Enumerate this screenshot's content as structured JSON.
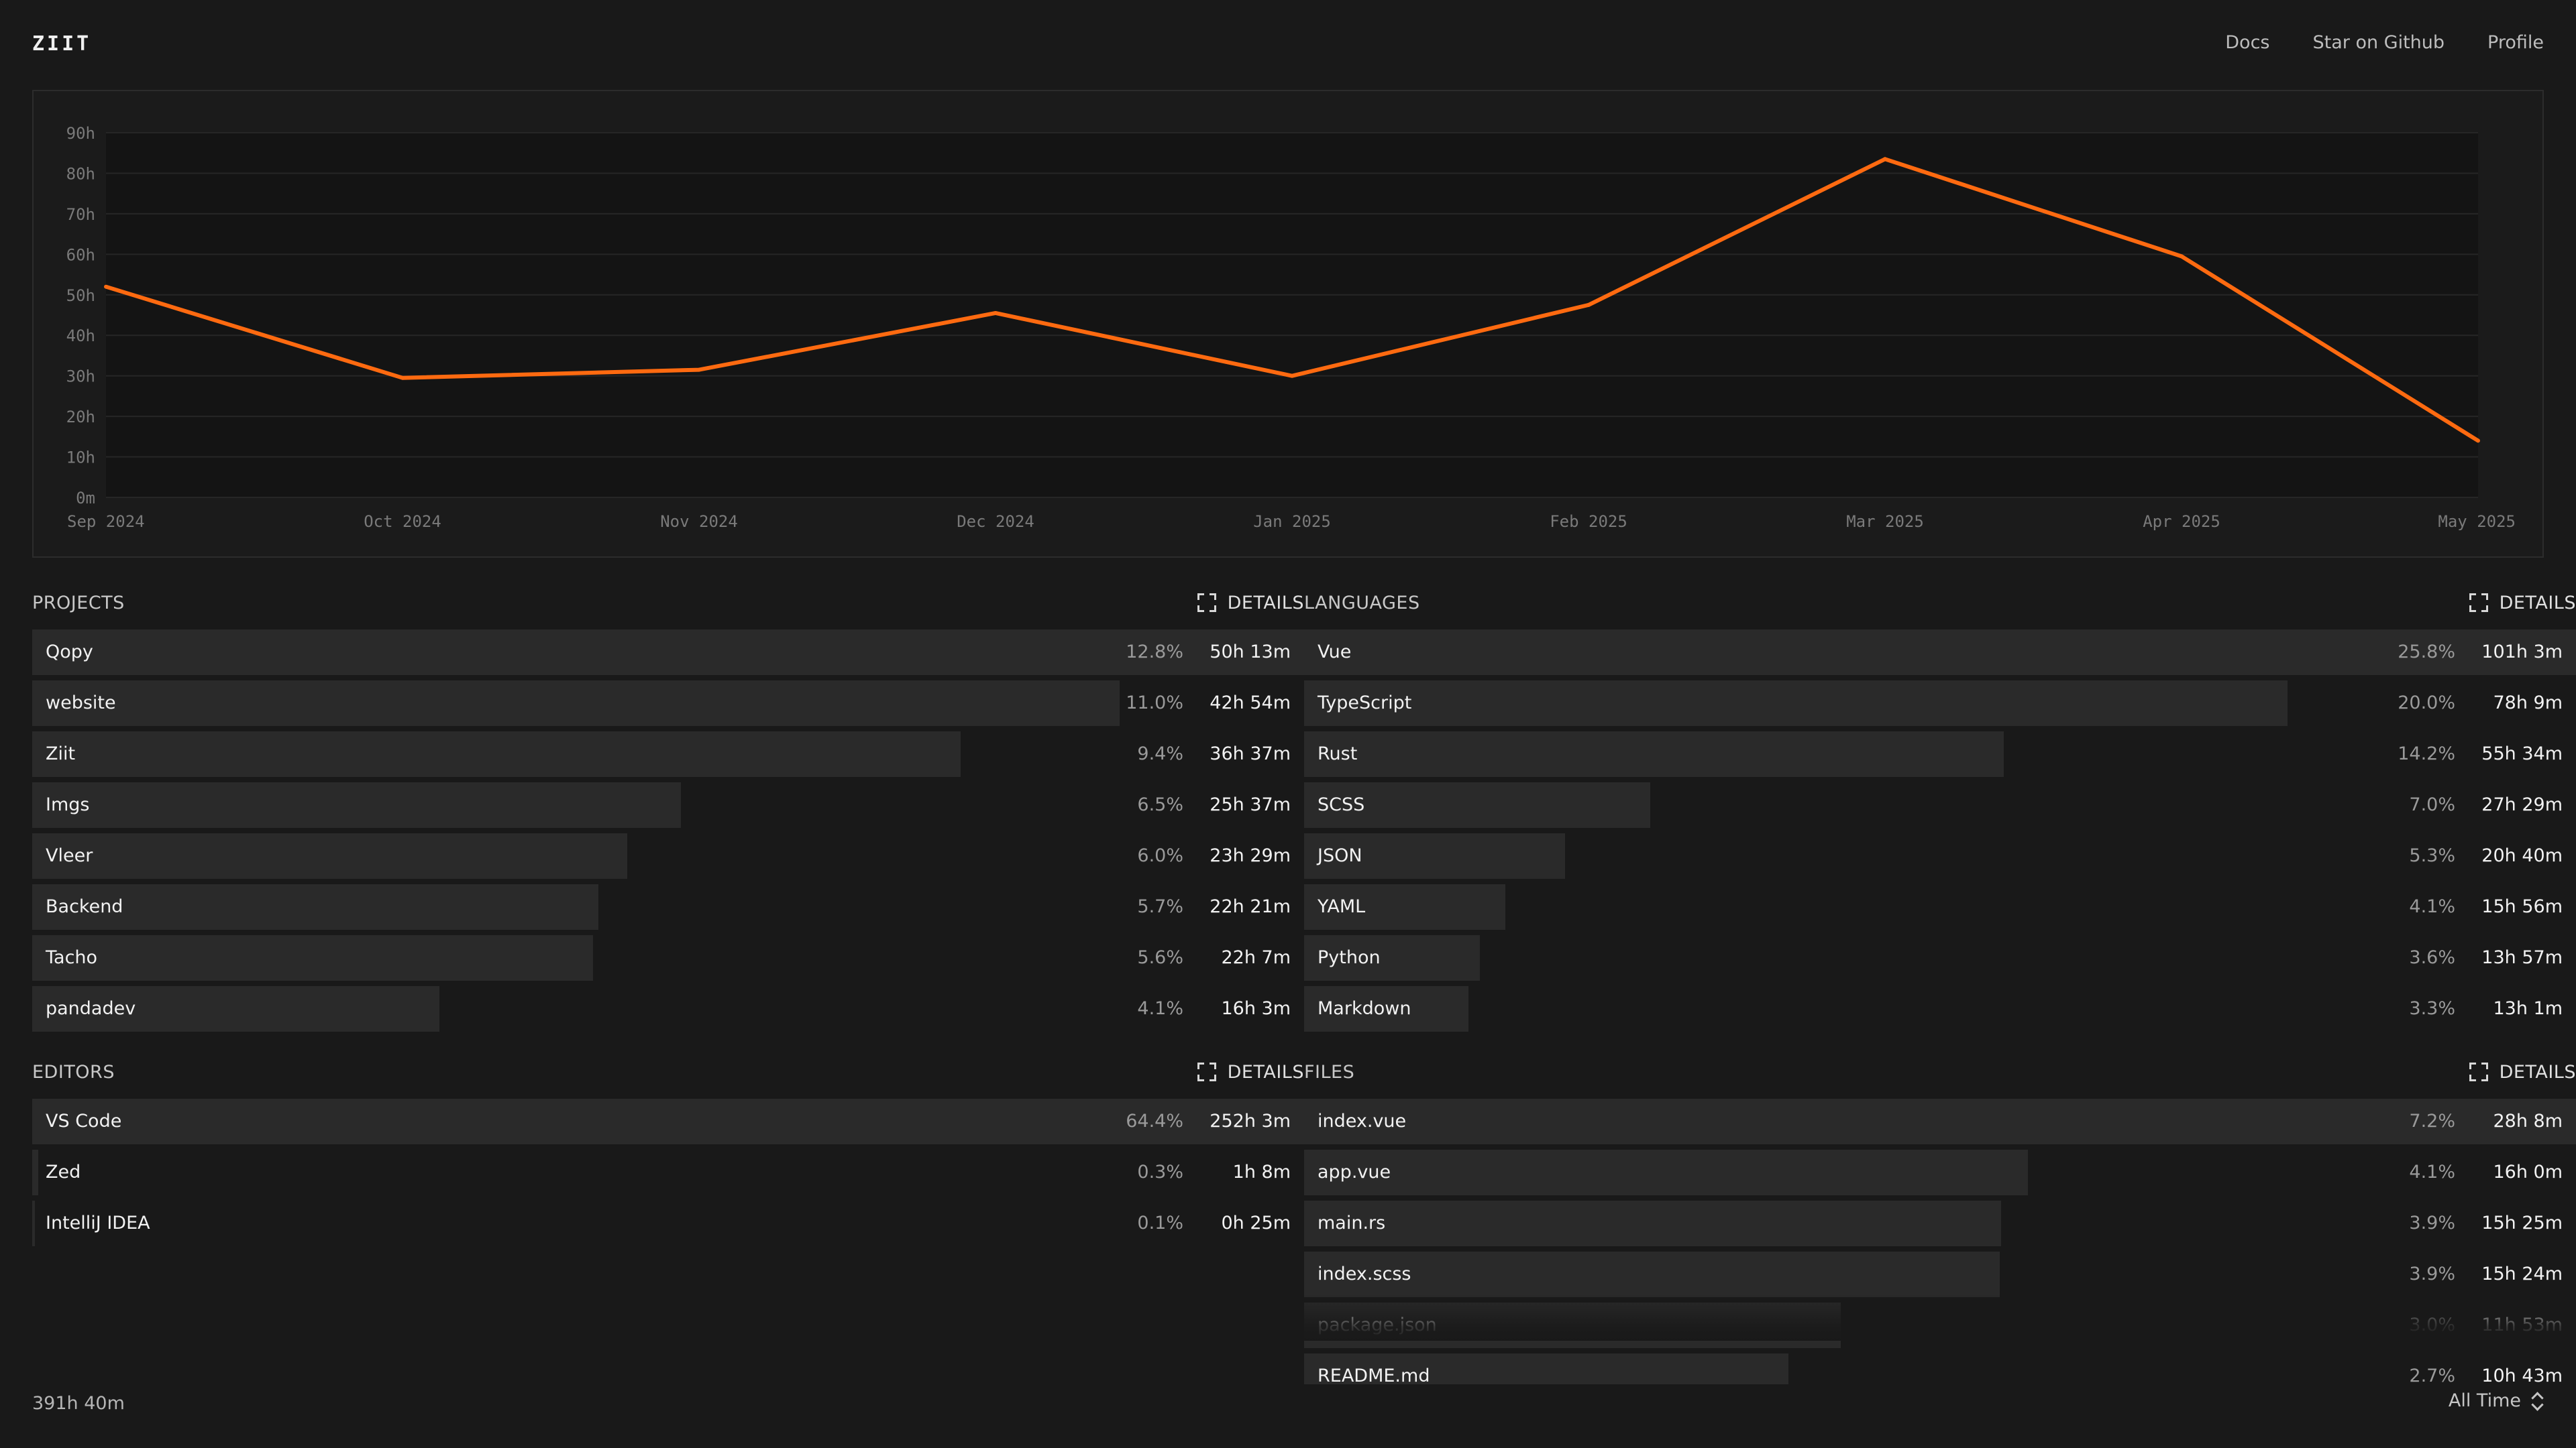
{
  "header": {
    "logo": "ZIIT",
    "nav": [
      "Docs",
      "Star on Github",
      "Profile"
    ]
  },
  "chart_data": {
    "type": "line",
    "x": [
      "Sep 2024",
      "Oct 2024",
      "Nov 2024",
      "Dec 2024",
      "Jan 2025",
      "Feb 2025",
      "Mar 2025",
      "Apr 2025",
      "May 2025"
    ],
    "values": [
      52,
      29.5,
      31.5,
      45.5,
      30,
      47.5,
      83.5,
      59.5,
      14
    ],
    "y_ticks": [
      "0m",
      "10h",
      "20h",
      "30h",
      "40h",
      "50h",
      "60h",
      "70h",
      "80h",
      "90h"
    ],
    "ylim": [
      0,
      90
    ],
    "grid": true,
    "line_color": "#ff6a10"
  },
  "projects": {
    "title": "PROJECTS",
    "details": "DETAILS",
    "rows": [
      {
        "name": "Qopy",
        "pct": "12.8%",
        "time": "50h 13m",
        "ratio": 1.0
      },
      {
        "name": "website",
        "pct": "11.0%",
        "time": "42h 54m",
        "ratio": 0.855
      },
      {
        "name": "Ziit",
        "pct": "9.4%",
        "time": "36h 37m",
        "ratio": 0.73
      },
      {
        "name": "Imgs",
        "pct": "6.5%",
        "time": "25h 37m",
        "ratio": 0.51
      },
      {
        "name": "Vleer",
        "pct": "6.0%",
        "time": "23h 29m",
        "ratio": 0.468
      },
      {
        "name": "Backend",
        "pct": "5.7%",
        "time": "22h 21m",
        "ratio": 0.445
      },
      {
        "name": "Tacho",
        "pct": "5.6%",
        "time": "22h 7m",
        "ratio": 0.441
      },
      {
        "name": "pandadev",
        "pct": "4.1%",
        "time": "16h 3m",
        "ratio": 0.32
      }
    ]
  },
  "languages": {
    "title": "LANGUAGES",
    "details": "DETAILS",
    "rows": [
      {
        "name": "Vue",
        "pct": "25.8%",
        "time": "101h 3m",
        "ratio": 1.0
      },
      {
        "name": "TypeScript",
        "pct": "20.0%",
        "time": "78h 9m",
        "ratio": 0.773
      },
      {
        "name": "Rust",
        "pct": "14.2%",
        "time": "55h 34m",
        "ratio": 0.55
      },
      {
        "name": "SCSS",
        "pct": "7.0%",
        "time": "27h 29m",
        "ratio": 0.272
      },
      {
        "name": "JSON",
        "pct": "5.3%",
        "time": "20h 40m",
        "ratio": 0.205
      },
      {
        "name": "YAML",
        "pct": "4.1%",
        "time": "15h 56m",
        "ratio": 0.158
      },
      {
        "name": "Python",
        "pct": "3.6%",
        "time": "13h 57m",
        "ratio": 0.138
      },
      {
        "name": "Markdown",
        "pct": "3.3%",
        "time": "13h 1m",
        "ratio": 0.129
      }
    ]
  },
  "editors": {
    "title": "EDITORS",
    "details": "DETAILS",
    "rows": [
      {
        "name": "VS Code",
        "pct": "64.4%",
        "time": "252h 3m",
        "ratio": 1.0
      },
      {
        "name": "Zed",
        "pct": "0.3%",
        "time": "1h 8m",
        "ratio": 0.0045
      },
      {
        "name": "IntelliJ IDEA",
        "pct": "0.1%",
        "time": "0h 25m",
        "ratio": 0.0017
      }
    ]
  },
  "files": {
    "title": "FILES",
    "details": "DETAILS",
    "rows": [
      {
        "name": "index.vue",
        "pct": "7.2%",
        "time": "28h 8m",
        "ratio": 1.0
      },
      {
        "name": "app.vue",
        "pct": "4.1%",
        "time": "16h 0m",
        "ratio": 0.569
      },
      {
        "name": "main.rs",
        "pct": "3.9%",
        "time": "15h 25m",
        "ratio": 0.548
      },
      {
        "name": "index.scss",
        "pct": "3.9%",
        "time": "15h 24m",
        "ratio": 0.547
      },
      {
        "name": "package.json",
        "pct": "3.0%",
        "time": "11h 53m",
        "ratio": 0.422
      },
      {
        "name": "README.md",
        "pct": "2.7%",
        "time": "10h 43m",
        "ratio": 0.381
      }
    ]
  },
  "footer": {
    "total": "391h 40m",
    "range": "All Time"
  }
}
